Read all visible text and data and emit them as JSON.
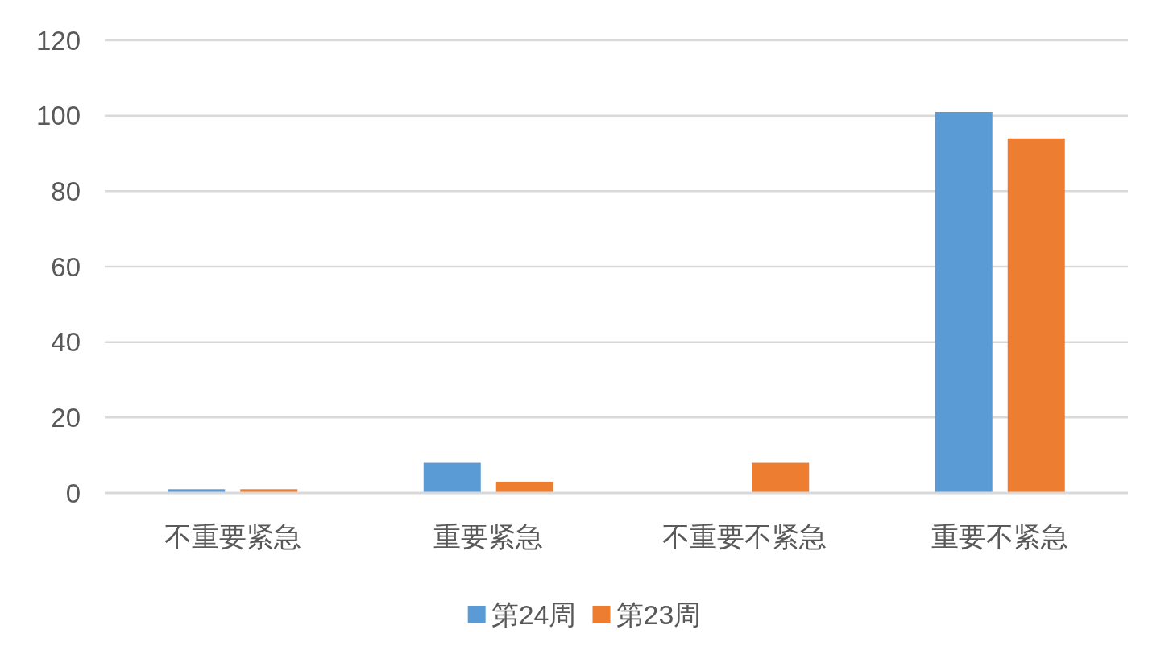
{
  "chart_data": {
    "type": "bar",
    "categories": [
      "不重要紧急",
      "重要紧急",
      "不重要不紧急",
      "重要不紧急"
    ],
    "series": [
      {
        "name": "第24周",
        "color": "#5b9bd5",
        "values": [
          1,
          8,
          0,
          101
        ]
      },
      {
        "name": "第23周",
        "color": "#ed7d31",
        "values": [
          1,
          3,
          8,
          94
        ]
      }
    ],
    "ylim": [
      0,
      120
    ],
    "yticks": [
      0,
      20,
      40,
      60,
      80,
      100,
      120
    ],
    "grid": "y",
    "legend": "bottom"
  }
}
